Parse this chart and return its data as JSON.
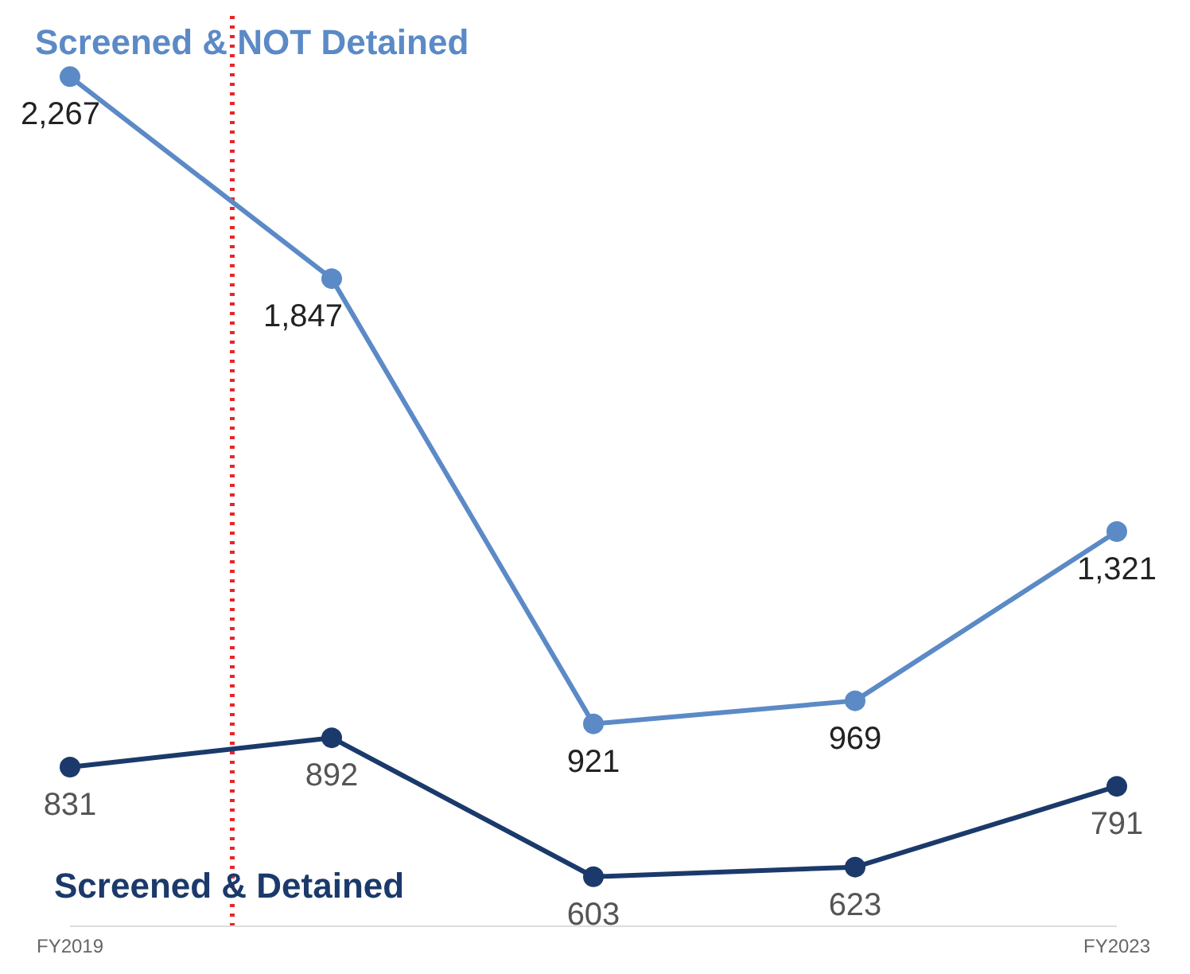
{
  "chart_data": {
    "type": "line",
    "categories": [
      "FY2019",
      null,
      null,
      null,
      "FY2023"
    ],
    "ylim": [
      500,
      2400
    ],
    "tick_labels": "x",
    "series": [
      {
        "name": "Screened & NOT Detained",
        "color": "#5b8ac6",
        "values": [
          2267,
          1847,
          921,
          969,
          1321
        ],
        "value_labels": [
          "2,267",
          "1,847",
          "921",
          "969",
          "1,321"
        ]
      },
      {
        "name": "Screened & Detained",
        "color": "#1b3a6b",
        "values": [
          831,
          892,
          603,
          623,
          791
        ],
        "value_labels": [
          "831",
          "892",
          "603",
          "623",
          "791"
        ]
      }
    ],
    "marker": "circle"
  }
}
